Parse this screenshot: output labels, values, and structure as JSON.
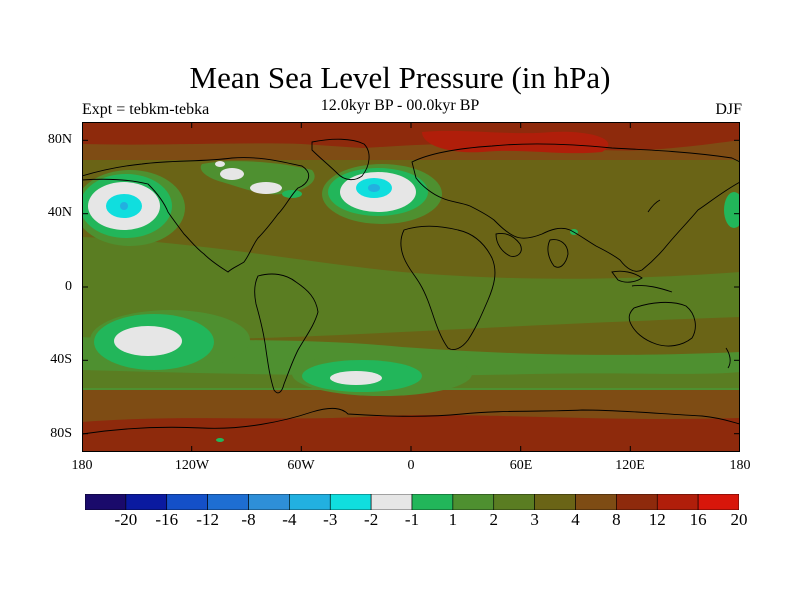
{
  "title": "Mean Sea Level Pressure (in hPa)",
  "subtitle_left": "Expt = tebkm-tebka",
  "subtitle_center": "12.0kyr BP - 00.0kyr BP",
  "subtitle_right": "DJF",
  "y_ticks": [
    "80N",
    "40N",
    "0",
    "40S",
    "80S"
  ],
  "x_ticks": [
    "180",
    "120W",
    "60W",
    "0",
    "60E",
    "120E",
    "180"
  ],
  "colorbar": {
    "colors": [
      "#1a0a6b",
      "#0a1aa0",
      "#1450c8",
      "#1e6ed2",
      "#2e8fd8",
      "#22b0e0",
      "#10dede",
      "#e6e6e6",
      "#22b65a",
      "#4e9030",
      "#5a7d22",
      "#6a6416",
      "#7e4c14",
      "#8e2a0c",
      "#b01e0a",
      "#d8160a"
    ],
    "labels": [
      "-20",
      "-16",
      "-12",
      "-8",
      "-4",
      "-3",
      "-2",
      "-1",
      "1",
      "2",
      "3",
      "4",
      "8",
      "12",
      "16",
      "20"
    ]
  },
  "regions": {
    "n_pacific_low": "North Pacific low anomaly",
    "n_atlantic_low": "North Atlantic low anomaly",
    "s_pacific_low": "South Pacific low anomaly",
    "s_atlantic_low": "South Atlantic low anomaly"
  }
}
